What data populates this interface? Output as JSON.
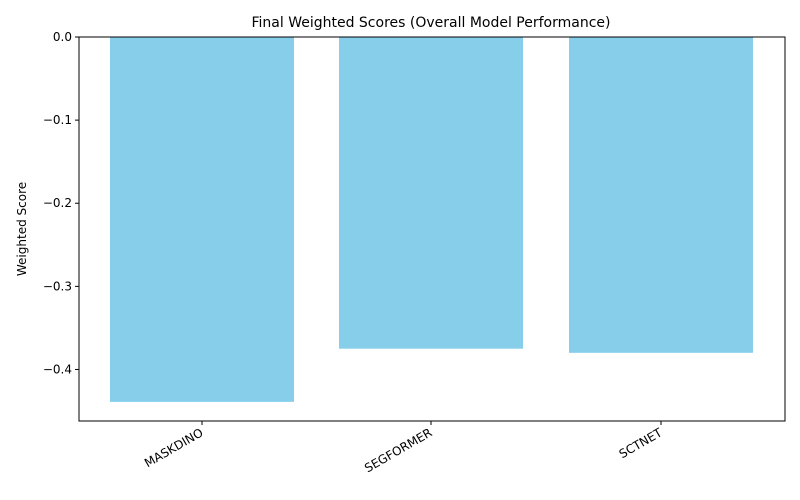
{
  "chart_data": {
    "type": "bar",
    "title": "Final Weighted Scores (Overall Model Performance)",
    "xlabel": "",
    "ylabel": "Weighted Score",
    "categories": [
      "MASKDINO",
      "SEGFORMER",
      "SCTNET"
    ],
    "values": [
      -0.439,
      -0.375,
      -0.38
    ],
    "ylim": [
      -0.462,
      0.0
    ],
    "yticks": [
      0.0,
      -0.1,
      -0.2,
      -0.3,
      -0.4
    ],
    "ytick_labels": [
      "0.0",
      "−0.1",
      "−0.2",
      "−0.3",
      "−0.4"
    ],
    "bar_color": "#87ceeb",
    "grid": false,
    "legend": "none"
  }
}
